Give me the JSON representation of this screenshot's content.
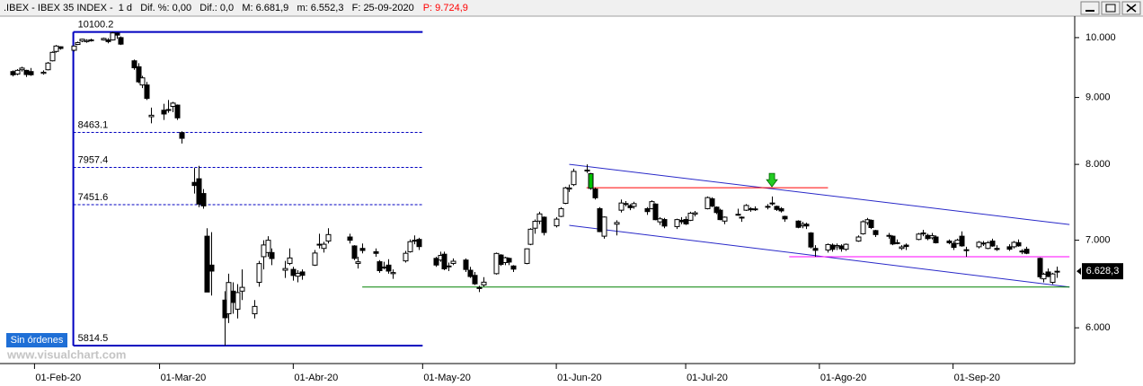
{
  "chart_data": {
    "type": "candlestick",
    "title": ".IBEX - IBEX 35 INDEX -  1 d   Dif. %: 0,00   Dif.: 0,0   M: 6.681,9   m: 6.552,3   F: 25-09-2020",
    "title_price": "P: 9.724,9",
    "button": "Sin órdenes",
    "watermark": "www.visualchart.com",
    "log_scale": true,
    "up_color": "#ffffff",
    "down_color": "#000000",
    "outline_color": "#000000",
    "xlim": [
      "2020-01-24",
      "2020-09-29"
    ],
    "ylim": [
      5634,
      10385
    ],
    "yticks": [
      {
        "value": 6000,
        "label": "6.000"
      },
      {
        "value": 7000,
        "label": "7.000"
      },
      {
        "value": 8000,
        "label": "8.000"
      },
      {
        "value": 9000,
        "label": "9.000"
      },
      {
        "value": 10000,
        "label": "10.000"
      }
    ],
    "xticks": [
      {
        "value": "2020-02-01",
        "label": "01-Feb-20"
      },
      {
        "value": "2020-03-01",
        "label": "01-Mar-20"
      },
      {
        "value": "2020-04-01",
        "label": "01-Abr-20"
      },
      {
        "value": "2020-05-01",
        "label": "01-May-20"
      },
      {
        "value": "2020-06-01",
        "label": "01-Jun-20"
      },
      {
        "value": "2020-07-01",
        "label": "01-Jul-20"
      },
      {
        "value": "2020-08-01",
        "label": "01-Ago-20"
      },
      {
        "value": "2020-09-01",
        "label": "01-Sep-20"
      }
    ],
    "x": [
      "2020-01-27",
      "2020-01-28",
      "2020-01-29",
      "2020-01-30",
      "2020-01-31",
      "2020-02-03",
      "2020-02-04",
      "2020-02-05",
      "2020-02-06",
      "2020-02-07",
      "2020-02-10",
      "2020-02-11",
      "2020-02-12",
      "2020-02-13",
      "2020-02-14",
      "2020-02-17",
      "2020-02-18",
      "2020-02-19",
      "2020-02-20",
      "2020-02-21",
      "2020-02-24",
      "2020-02-25",
      "2020-02-26",
      "2020-02-27",
      "2020-02-28",
      "2020-03-02",
      "2020-03-03",
      "2020-03-04",
      "2020-03-05",
      "2020-03-06",
      "2020-03-09",
      "2020-03-10",
      "2020-03-11",
      "2020-03-12",
      "2020-03-13",
      "2020-03-16",
      "2020-03-17",
      "2020-03-18",
      "2020-03-19",
      "2020-03-20",
      "2020-03-23",
      "2020-03-24",
      "2020-03-25",
      "2020-03-26",
      "2020-03-27",
      "2020-03-30",
      "2020-03-31",
      "2020-04-01",
      "2020-04-02",
      "2020-04-03",
      "2020-04-06",
      "2020-04-07",
      "2020-04-08",
      "2020-04-09",
      "2020-04-14",
      "2020-04-15",
      "2020-04-16",
      "2020-04-17",
      "2020-04-20",
      "2020-04-21",
      "2020-04-22",
      "2020-04-23",
      "2020-04-24",
      "2020-04-27",
      "2020-04-28",
      "2020-04-29",
      "2020-04-30",
      "2020-05-04",
      "2020-05-05",
      "2020-05-06",
      "2020-05-07",
      "2020-05-08",
      "2020-05-11",
      "2020-05-12",
      "2020-05-13",
      "2020-05-14",
      "2020-05-15",
      "2020-05-18",
      "2020-05-19",
      "2020-05-20",
      "2020-05-21",
      "2020-05-22",
      "2020-05-25",
      "2020-05-26",
      "2020-05-27",
      "2020-05-28",
      "2020-05-29",
      "2020-06-01",
      "2020-06-02",
      "2020-06-03",
      "2020-06-04",
      "2020-06-05",
      "2020-06-08",
      "2020-06-09",
      "2020-06-10",
      "2020-06-11",
      "2020-06-12",
      "2020-06-15",
      "2020-06-16",
      "2020-06-17",
      "2020-06-18",
      "2020-06-19",
      "2020-06-22",
      "2020-06-23",
      "2020-06-24",
      "2020-06-25",
      "2020-06-26",
      "2020-06-29",
      "2020-06-30",
      "2020-07-01",
      "2020-07-02",
      "2020-07-03",
      "2020-07-06",
      "2020-07-07",
      "2020-07-08",
      "2020-07-09",
      "2020-07-10",
      "2020-07-13",
      "2020-07-14",
      "2020-07-15",
      "2020-07-16",
      "2020-07-17",
      "2020-07-20",
      "2020-07-21",
      "2020-07-22",
      "2020-07-23",
      "2020-07-24",
      "2020-07-27",
      "2020-07-28",
      "2020-07-29",
      "2020-07-30",
      "2020-07-31",
      "2020-08-03",
      "2020-08-04",
      "2020-08-05",
      "2020-08-06",
      "2020-08-07",
      "2020-08-10",
      "2020-08-11",
      "2020-08-12",
      "2020-08-13",
      "2020-08-14",
      "2020-08-17",
      "2020-08-18",
      "2020-08-19",
      "2020-08-20",
      "2020-08-21",
      "2020-08-24",
      "2020-08-25",
      "2020-08-26",
      "2020-08-27",
      "2020-08-28",
      "2020-08-31",
      "2020-09-01",
      "2020-09-02",
      "2020-09-03",
      "2020-09-04",
      "2020-09-07",
      "2020-09-08",
      "2020-09-09",
      "2020-09-10",
      "2020-09-11",
      "2020-09-14",
      "2020-09-15",
      "2020-09-16",
      "2020-09-17",
      "2020-09-18",
      "2020-09-21",
      "2020-09-22",
      "2020-09-23",
      "2020-09-24",
      "2020-09-25"
    ],
    "open": [
      9420,
      9380,
      9450,
      9440,
      9420,
      9390,
      9450,
      9600,
      9760,
      9840,
      9780,
      9880,
      9940,
      9930,
      9960,
      9960,
      9960,
      9960,
      10080,
      10000,
      9600,
      9500,
      9200,
      9200,
      8700,
      8800,
      8800,
      8860,
      8880,
      8460,
      7750,
      7800,
      7600,
      7050,
      6700,
      6300,
      6150,
      6400,
      6200,
      6400,
      6150,
      6500,
      6800,
      6850,
      6850,
      6640,
      6720,
      6650,
      6570,
      6620,
      6700,
      6950,
      6900,
      6990,
      7040,
      6930,
      6720,
      6900,
      6860,
      6740,
      6670,
      6700,
      6600,
      6750,
      6860,
      6990,
      7010,
      6780,
      6760,
      6830,
      6690,
      6720,
      6760,
      6640,
      6580,
      6440,
      6470,
      6600,
      6820,
      6730,
      6780,
      6690,
      6720,
      6950,
      7150,
      7240,
      7290,
      7180,
      7300,
      7470,
      7660,
      7720,
      7920,
      7870,
      7660,
      7400,
      7050,
      7200,
      7380,
      7460,
      7440,
      7430,
      7400,
      7400,
      7460,
      7230,
      7260,
      7170,
      7250,
      7260,
      7250,
      7330,
      7400,
      7530,
      7420,
      7380,
      7240,
      7320,
      7290,
      7380,
      7400,
      7390,
      7430,
      7470,
      7430,
      7400,
      7300,
      7240,
      7180,
      7200,
      7090,
      6900,
      6880,
      6940,
      6920,
      6930,
      6890,
      6990,
      7080,
      7220,
      7250,
      7120,
      7060,
      7050,
      6970,
      6900,
      6940,
      7010,
      7090,
      7060,
      7030,
      7040,
      6990,
      6960,
      6960,
      7050,
      6880,
      6920,
      6960,
      6900,
      6990,
      6900,
      6920,
      6920,
      6970,
      6860,
      6890,
      6780,
      6540,
      6620,
      6500,
      6620
    ],
    "high": [
      9440,
      9460,
      9500,
      9450,
      9480,
      9440,
      9580,
      9760,
      9870,
      9850,
      9860,
      9930,
      9980,
      9970,
      9980,
      10000,
      9990,
      10100.2,
      10090,
      10020,
      9620,
      9560,
      9350,
      9250,
      8840,
      8900,
      8960,
      8930,
      8890,
      8480,
      7950,
      7980,
      7660,
      7150,
      7100,
      6400,
      6600,
      6500,
      6480,
      6650,
      6300,
      6750,
      7000,
      7050,
      6900,
      6750,
      6900,
      6680,
      6640,
      6650,
      6880,
      7080,
      6980,
      7150,
      7080,
      6940,
      6800,
      6960,
      6900,
      6760,
      6740,
      6770,
      6650,
      6870,
      7010,
      7060,
      7030,
      6800,
      6860,
      6860,
      6730,
      6780,
      6780,
      6680,
      6620,
      6460,
      6560,
      6850,
      6830,
      6800,
      6790,
      6700,
      6900,
      7150,
      7260,
      7360,
      7300,
      7290,
      7420,
      7690,
      7720,
      7940,
      8000,
      7880,
      7680,
      7420,
      7300,
      7250,
      7520,
      7500,
      7460,
      7490,
      7420,
      7510,
      7470,
      7290,
      7280,
      7270,
      7290,
      7300,
      7360,
      7370,
      7560,
      7550,
      7430,
      7400,
      7300,
      7400,
      7300,
      7460,
      7420,
      7430,
      7460,
      7560,
      7440,
      7420,
      7310,
      7250,
      7230,
      7220,
      7100,
      6940,
      6960,
      6960,
      6960,
      6950,
      6960,
      7060,
      7250,
      7280,
      7260,
      7130,
      7090,
      7060,
      7010,
      6940,
      6960,
      7090,
      7130,
      7080,
      7090,
      7060,
      7010,
      6990,
      7020,
      7110,
      6920,
      6990,
      6990,
      6990,
      7020,
      6940,
      6950,
      6990,
      7010,
      6890,
      6920,
      6790,
      6610,
      6660,
      6610,
      6681.9
    ],
    "low": [
      9340,
      9360,
      9420,
      9330,
      9350,
      9370,
      9440,
      9590,
      9740,
      9790,
      9760,
      9870,
      9920,
      9910,
      9930,
      9950,
      9900,
      9950,
      9980,
      9870,
      9450,
      9230,
      9150,
      8960,
      8600,
      8650,
      8760,
      8770,
      8650,
      8300,
      7600,
      7420,
      7400,
      6390,
      6350,
      5814.5,
      6050,
      6150,
      6100,
      6300,
      6100,
      6450,
      6650,
      6800,
      6700,
      6550,
      6700,
      6520,
      6500,
      6530,
      6690,
      6900,
      6850,
      6960,
      6960,
      6760,
      6660,
      6840,
      6800,
      6610,
      6650,
      6600,
      6540,
      6730,
      6850,
      6950,
      6880,
      6680,
      6740,
      6640,
      6630,
      6700,
      6620,
      6550,
      6470,
      6390,
      6450,
      6590,
      6690,
      6700,
      6700,
      6620,
      6710,
      6940,
      7080,
      7200,
      7060,
      7160,
      7290,
      7460,
      7620,
      7700,
      7880,
      7650,
      7520,
      7100,
      7020,
      7060,
      7350,
      7430,
      7380,
      7400,
      7320,
      7390,
      7250,
      7190,
      7150,
      7140,
      7200,
      7190,
      7240,
      7300,
      7390,
      7420,
      7330,
      7250,
      7200,
      7310,
      7230,
      7370,
      7360,
      7370,
      7390,
      7440,
      7370,
      7350,
      7230,
      7150,
      7150,
      7140,
      6900,
      6800,
      6850,
      6860,
      6880,
      6860,
      6870,
      6980,
      7070,
      7190,
      7140,
      7040,
      7020,
      6940,
      6950,
      6880,
      6880,
      7000,
      7050,
      7000,
      7010,
      6960,
      6950,
      6880,
      6950,
      6920,
      6800,
      6900,
      6930,
      6890,
      6920,
      6870,
      6870,
      6900,
      6920,
      6830,
      6830,
      6540,
      6500,
      6560,
      6480,
      6552.3
    ],
    "close": [
      9367,
      9440,
      9478,
      9371,
      9367,
      9409,
      9562,
      9744,
      9853,
      9811,
      9853,
      9913,
      9972,
      9951,
      9956,
      9986,
      9930,
      10083,
      10044,
      9886,
      9483,
      9251,
      9316,
      8985,
      8723,
      8742,
      8811,
      8911,
      8683,
      8376,
      7708,
      7461,
      7436,
      6390,
      6630,
      6107,
      6498,
      6274,
      6384,
      6443,
      6230,
      6718,
      6942,
      7000,
      6778,
      6660,
      6785,
      6579,
      6603,
      6581,
      6844,
      6951,
      6951,
      7070,
      7000,
      6780,
      6739,
      6875,
      6840,
      6635,
      6677,
      6630,
      6613,
      6841,
      6982,
      7000,
      6922,
      6701,
      6816,
      6656,
      6688,
      6746,
      6649,
      6567,
      6483,
      6437,
      6502,
      6839,
      6709,
      6788,
      6736,
      6653,
      6895,
      7137,
      7237,
      7332,
      7096,
      7265,
      7400,
      7676,
      7675,
      7902,
      7918,
      7669,
      7543,
      7107,
      7292,
      7222,
      7474,
      7467,
      7413,
      7466,
      7362,
      7492,
      7258,
      7269,
      7177,
      7259,
      7231,
      7204,
      7341,
      7346,
      7546,
      7434,
      7350,
      7259,
      7290,
      7327,
      7284,
      7442,
      7386,
      7397,
      7420,
      7474,
      7390,
      7371,
      7268,
      7161,
      7200,
      7178,
      6917,
      6877,
      6947,
      6889,
      6935,
      6895,
      6950,
      7040,
      7232,
      7258,
      7158,
      7070,
      7054,
      6954,
      6968,
      6918,
      6923,
      7076,
      7078,
      7020,
      7056,
      6969,
      6969,
      6912,
      7002,
      6931,
      6884,
      6975,
      6965,
      6969,
      6929,
      6887,
      6890,
      6974,
      6931,
      6868,
      6841,
      6564,
      6594,
      6567,
      6597,
      6628.3
    ],
    "highlight": {
      "x": "2020-06-09",
      "color": "#00c000"
    },
    "last_price": {
      "value": 6628.3,
      "label": "6.628,3"
    },
    "fibonacci": {
      "x": [
        "2020-02-10",
        "2020-05-01"
      ],
      "color": "#0000c0",
      "levels": [
        10100.2,
        8463.1,
        7957.4,
        7451.6,
        5814.5
      ]
    },
    "lines": [
      {
        "x": [
          "2020-06-04",
          "2020-09-28"
        ],
        "y": [
          8000,
          7196
        ],
        "color": "#2828c8"
      },
      {
        "x": [
          "2020-06-04",
          "2020-09-28"
        ],
        "y": [
          7186,
          6447
        ],
        "color": "#2828c8"
      },
      {
        "x": [
          "2020-04-17",
          "2020-09-28"
        ],
        "y": [
          6447,
          6447
        ],
        "color": "#008000"
      },
      {
        "x": [
          "2020-06-08",
          "2020-08-03"
        ],
        "y": [
          7678,
          7678
        ],
        "color": "#ff0000"
      },
      {
        "x": [
          "2020-07-25",
          "2020-09-28"
        ],
        "y": [
          6800,
          6800
        ],
        "color": "#ff00ff"
      }
    ],
    "arrow": {
      "x": "2020-07-21",
      "y": 7690,
      "color": "#22cc22"
    }
  }
}
